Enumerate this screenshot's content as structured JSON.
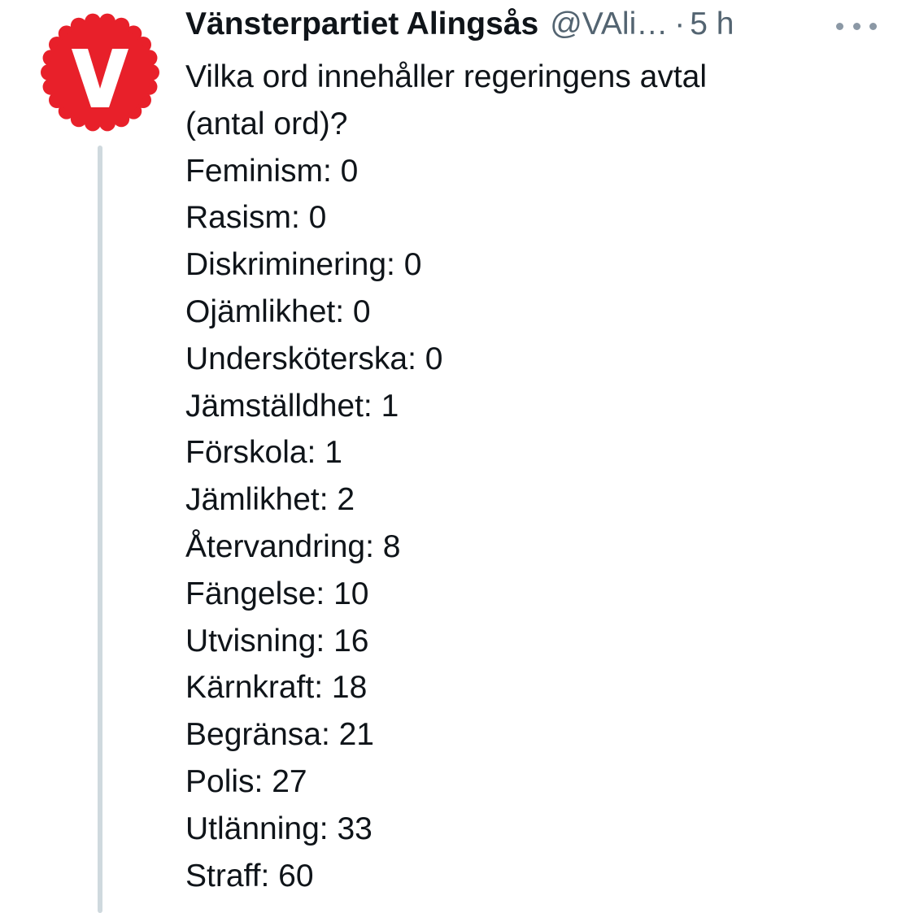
{
  "tweet": {
    "display_name": "Vänsterpartiet Alingsås",
    "handle": "@VAli…",
    "separator": "·",
    "time": "5 h",
    "more_icon": "more-horizontal-icon",
    "avatar_icon": "v-party-logo",
    "avatar_color": "#e8202a",
    "text_intro_1": "Vilka ord innehåller regeringens avtal",
    "text_intro_2": "(antal ord)?",
    "word_counts": [
      "Feminism: 0",
      "Rasism: 0",
      "Diskriminering: 0",
      "Ojämlikhet: 0",
      "Undersköterska: 0",
      "Jämställdhet: 1",
      "Förskola: 1",
      "Jämlikhet: 2",
      "Återvandring: 8",
      "Fängelse: 10",
      "Utvisning: 16",
      "Kärnkraft: 18",
      "Begränsa: 21",
      "Polis: 27",
      "Utlänning: 33",
      "Straff: 60"
    ]
  }
}
